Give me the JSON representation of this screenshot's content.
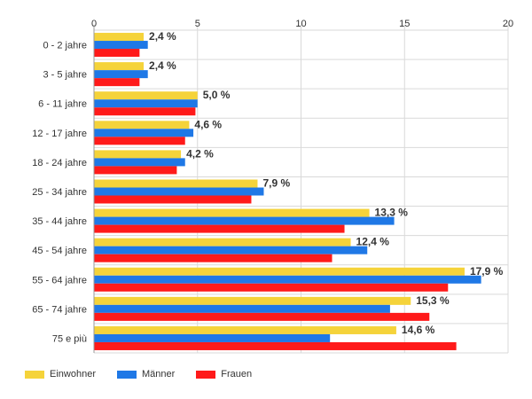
{
  "chart_data": {
    "type": "bar",
    "orientation": "horizontal",
    "categories": [
      "0 - 2 jahre",
      "3 - 5 jahre",
      "6 - 11 jahre",
      "12 - 17 jahre",
      "18 - 24 jahre",
      "25 - 34 jahre",
      "35 - 44 jahre",
      "45 - 54 jahre",
      "55 - 64 jahre",
      "65 - 74 jahre",
      "75 e più"
    ],
    "series": [
      {
        "name": "Einwohner",
        "color": "#f5d33a",
        "values": [
          2.4,
          2.4,
          5.0,
          4.6,
          4.2,
          7.9,
          13.3,
          12.4,
          17.9,
          15.3,
          14.6
        ],
        "labels": [
          "2,4 %",
          "2,4 %",
          "5,0 %",
          "4,6 %",
          "4,2 %",
          "7,9 %",
          "13,3 %",
          "12,4 %",
          "17,9 %",
          "15,3 %",
          "14,6 %"
        ]
      },
      {
        "name": "Männer",
        "color": "#1f78e6",
        "values": [
          2.6,
          2.6,
          5.0,
          4.8,
          4.4,
          8.2,
          14.5,
          13.2,
          18.7,
          14.3,
          11.4
        ]
      },
      {
        "name": "Frauen",
        "color": "#ff1a1a",
        "values": [
          2.2,
          2.2,
          4.9,
          4.4,
          4.0,
          7.6,
          12.1,
          11.5,
          17.1,
          16.2,
          17.5
        ]
      }
    ],
    "xlim": [
      0,
      20
    ],
    "xticks": [
      "0",
      "5",
      "10",
      "15",
      "20"
    ],
    "grid": true,
    "legend_position": "bottom-left"
  }
}
